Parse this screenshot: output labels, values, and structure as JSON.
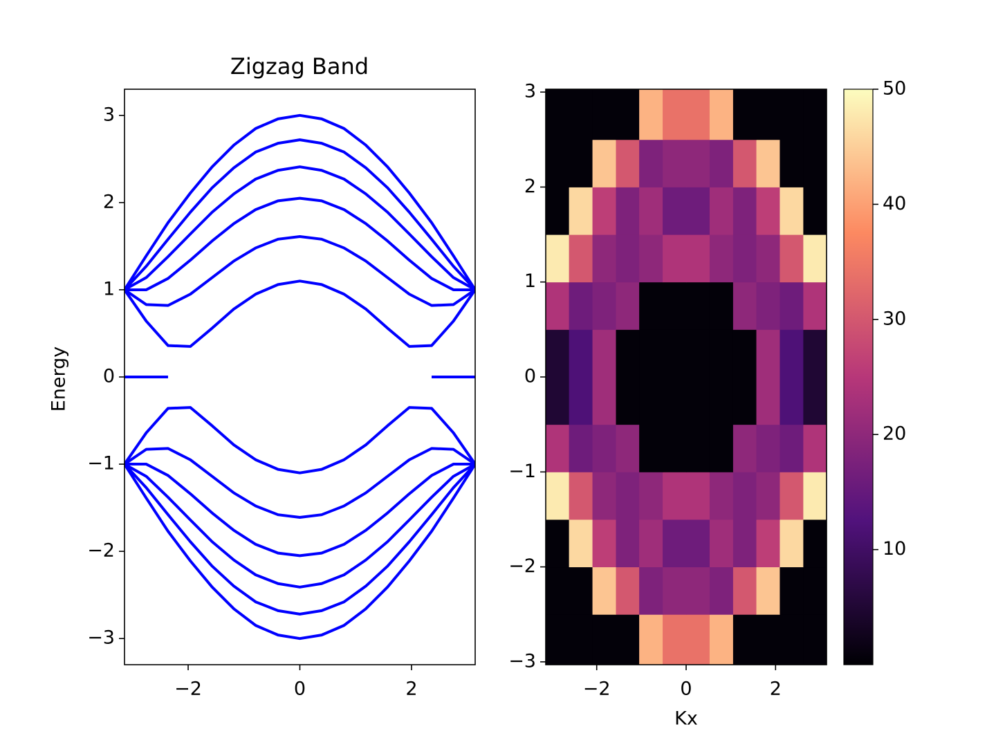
{
  "chart_data": [
    {
      "type": "line",
      "title": "Zigzag Band",
      "ylabel": "Energy",
      "x": [
        -3.14,
        -2.75,
        -2.36,
        -1.96,
        -1.57,
        -1.18,
        -0.79,
        -0.39,
        0,
        0.39,
        0.79,
        1.18,
        1.57,
        1.96,
        2.36,
        2.75,
        3.14
      ],
      "series": [
        {
          "color": "#0000ff",
          "values": [
            1.0,
            1.39,
            1.77,
            2.11,
            2.41,
            2.66,
            2.85,
            2.96,
            3.0,
            2.96,
            2.85,
            2.66,
            2.41,
            2.11,
            1.77,
            1.39,
            1.0
          ]
        },
        {
          "color": "#0000ff",
          "values": [
            1.0,
            1.27,
            1.58,
            1.89,
            2.17,
            2.4,
            2.58,
            2.68,
            2.72,
            2.68,
            2.58,
            2.4,
            2.17,
            1.89,
            1.58,
            1.27,
            1.0
          ]
        },
        {
          "color": "#0000ff",
          "values": [
            1.0,
            1.14,
            1.38,
            1.64,
            1.89,
            2.1,
            2.27,
            2.37,
            2.41,
            2.37,
            2.27,
            2.1,
            1.89,
            1.64,
            1.38,
            1.14,
            1.0
          ]
        },
        {
          "color": "#0000ff",
          "values": [
            1.0,
            1.0,
            1.13,
            1.34,
            1.56,
            1.76,
            1.92,
            2.02,
            2.05,
            2.02,
            1.92,
            1.76,
            1.56,
            1.34,
            1.13,
            1.0,
            1.0
          ]
        },
        {
          "color": "#0000ff",
          "values": [
            1.0,
            0.83,
            0.82,
            0.95,
            1.14,
            1.33,
            1.48,
            1.58,
            1.61,
            1.58,
            1.48,
            1.33,
            1.14,
            0.95,
            0.82,
            0.83,
            1.0
          ]
        },
        {
          "color": "#0000ff",
          "values": [
            1.0,
            0.64,
            0.36,
            0.35,
            0.56,
            0.78,
            0.95,
            1.06,
            1.1,
            1.06,
            0.95,
            0.78,
            0.56,
            0.35,
            0.36,
            0.64,
            1.0
          ]
        },
        {
          "color": "#0000ff",
          "values": [
            0,
            0,
            0,
            null,
            null,
            null,
            null,
            null,
            null,
            null,
            null,
            null,
            null,
            null,
            0,
            0,
            0
          ]
        },
        {
          "color": "#0000ff",
          "values": [
            -1.0,
            -0.64,
            -0.36,
            -0.35,
            -0.56,
            -0.78,
            -0.95,
            -1.06,
            -1.1,
            -1.06,
            -0.95,
            -0.78,
            -0.56,
            -0.35,
            -0.36,
            -0.64,
            -1.0
          ]
        },
        {
          "color": "#0000ff",
          "values": [
            -1.0,
            -0.83,
            -0.82,
            -0.95,
            -1.14,
            -1.33,
            -1.48,
            -1.58,
            -1.61,
            -1.58,
            -1.48,
            -1.33,
            -1.14,
            -0.95,
            -0.82,
            -0.83,
            -1.0
          ]
        },
        {
          "color": "#0000ff",
          "values": [
            -1.0,
            -1.0,
            -1.13,
            -1.34,
            -1.56,
            -1.76,
            -1.92,
            -2.02,
            -2.05,
            -2.02,
            -1.92,
            -1.76,
            -1.56,
            -1.34,
            -1.13,
            -1.0,
            -1.0
          ]
        },
        {
          "color": "#0000ff",
          "values": [
            -1.0,
            -1.14,
            -1.38,
            -1.64,
            -1.89,
            -2.1,
            -2.27,
            -2.37,
            -2.41,
            -2.37,
            -2.27,
            -2.1,
            -1.89,
            -1.64,
            -1.38,
            -1.14,
            -1.0
          ]
        },
        {
          "color": "#0000ff",
          "values": [
            -1.0,
            -1.27,
            -1.58,
            -1.89,
            -2.17,
            -2.4,
            -2.58,
            -2.68,
            -2.72,
            -2.68,
            -2.58,
            -2.4,
            -2.17,
            -1.89,
            -1.58,
            -1.27,
            -1.0
          ]
        },
        {
          "color": "#0000ff",
          "values": [
            -1.0,
            -1.39,
            -1.77,
            -2.11,
            -2.41,
            -2.66,
            -2.85,
            -2.96,
            -3.0,
            -2.96,
            -2.85,
            -2.66,
            -2.41,
            -2.11,
            -1.77,
            -1.39,
            -1.0
          ]
        }
      ],
      "xlim": [
        -3.14,
        3.14
      ],
      "ylim": [
        -3.3,
        3.3
      ],
      "xticks": [
        {
          "value": -2,
          "label": "−2"
        },
        0,
        2
      ],
      "yticks": [
        {
          "value": -3,
          "label": "−3"
        },
        {
          "value": -2,
          "label": "−2"
        },
        {
          "value": -1,
          "label": "−1"
        },
        0,
        1,
        2,
        3
      ]
    },
    {
      "type": "heatmap",
      "xlabel": "Kx",
      "colormap": "magma",
      "x": [
        -2.88,
        -2.36,
        -1.83,
        -1.31,
        -0.79,
        -0.26,
        0.26,
        0.79,
        1.31,
        1.83,
        2.36,
        2.88
      ],
      "y": [
        -2.75,
        -2.25,
        -1.75,
        -1.25,
        -0.75,
        -0.25,
        0.25,
        0.75,
        1.25,
        1.75,
        2.25,
        2.75
      ],
      "z": [
        [
          0.5,
          0.5,
          0.5,
          0.5,
          42,
          34,
          34,
          42,
          0.5,
          0.5,
          0.5,
          0.5
        ],
        [
          0.5,
          0.5,
          44,
          30,
          18,
          20,
          20,
          18,
          30,
          44,
          0.5,
          0.5
        ],
        [
          0.5,
          46,
          26,
          18,
          22,
          16,
          16,
          22,
          18,
          26,
          46,
          0.5
        ],
        [
          48,
          30,
          20,
          18,
          20,
          24,
          24,
          20,
          18,
          20,
          30,
          48
        ],
        [
          24,
          16,
          18,
          20,
          0.5,
          0.5,
          0.5,
          0.5,
          20,
          18,
          16,
          24
        ],
        [
          5,
          12,
          22,
          0.5,
          0.5,
          0.5,
          0.5,
          0.5,
          0.5,
          22,
          12,
          5
        ],
        [
          5,
          12,
          22,
          0.5,
          0.5,
          0.5,
          0.5,
          0.5,
          0.5,
          22,
          12,
          5
        ],
        [
          24,
          16,
          18,
          20,
          0.5,
          0.5,
          0.5,
          0.5,
          20,
          18,
          16,
          24
        ],
        [
          48,
          30,
          20,
          18,
          20,
          24,
          24,
          20,
          18,
          20,
          30,
          48
        ],
        [
          0.5,
          46,
          26,
          18,
          22,
          16,
          16,
          22,
          18,
          26,
          46,
          0.5
        ],
        [
          0.5,
          0.5,
          44,
          30,
          18,
          20,
          20,
          18,
          30,
          44,
          0.5,
          0.5
        ],
        [
          0.5,
          0.5,
          0.5,
          0.5,
          42,
          34,
          34,
          42,
          0.5,
          0.5,
          0.5,
          0.5
        ]
      ],
      "xlim": [
        -3.14,
        3.14
      ],
      "ylim": [
        -3.03,
        3.03
      ],
      "xticks": [
        {
          "value": -2,
          "label": "−2"
        },
        0,
        2
      ],
      "yticks": [
        {
          "value": -3,
          "label": "−3"
        },
        {
          "value": -2,
          "label": "−2"
        },
        {
          "value": -1,
          "label": "−1"
        },
        0,
        1,
        2,
        3
      ],
      "zlim": [
        0,
        50
      ],
      "zticks": [
        10,
        20,
        30,
        40,
        50
      ]
    }
  ]
}
